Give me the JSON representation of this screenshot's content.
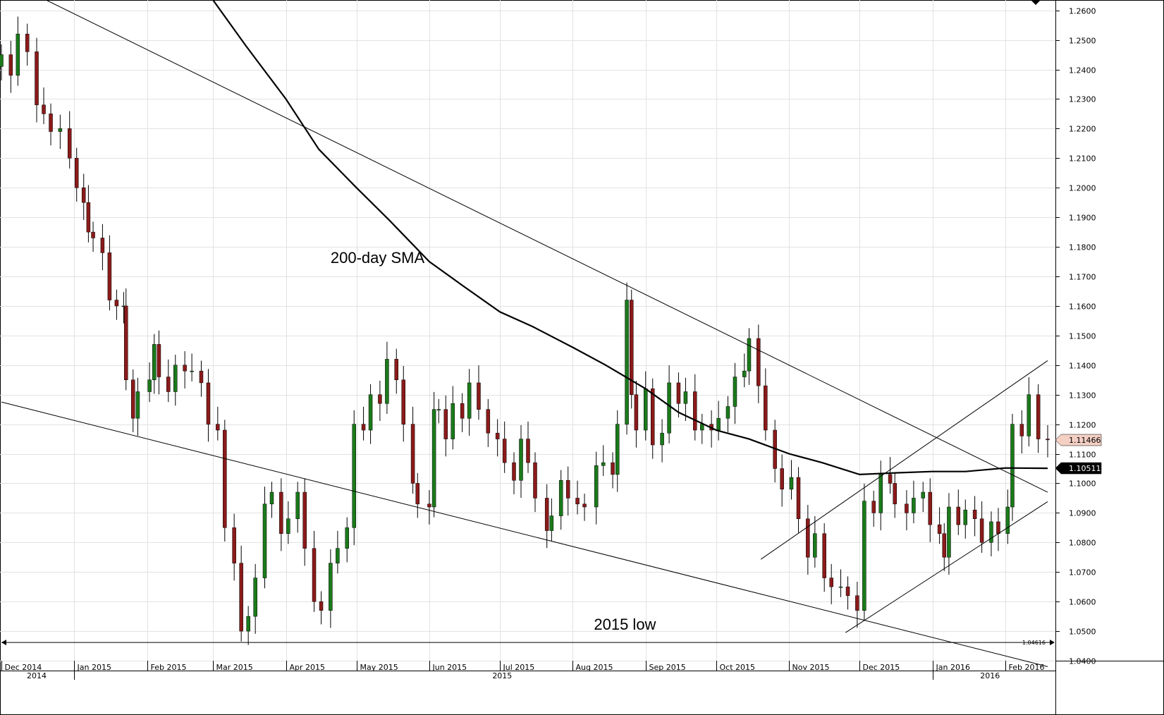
{
  "chart_data": {
    "type": "candlestick",
    "title": "",
    "y_axis": {
      "min": 1.04,
      "max": 1.2635,
      "step": 0.01,
      "tick_labels": [
        "1.0400",
        "1.0500",
        "1.0600",
        "1.0700",
        "1.0800",
        "1.0900",
        "1.1000",
        "1.1100",
        "1.1200",
        "1.1300",
        "1.1400",
        "1.1500",
        "1.1600",
        "1.1700",
        "1.1800",
        "1.1900",
        "1.2000",
        "1.2100",
        "1.2200",
        "1.2300",
        "1.2400",
        "1.2500",
        "1.2600"
      ],
      "side": "right"
    },
    "x_axis": {
      "start": "2014-12-01",
      "end": "2016-02-19",
      "month_labels": [
        "Dec 2014",
        "Jan 2015",
        "Feb 2015",
        "Mar 2015",
        "Apr 2015",
        "May 2015",
        "Jun 2015",
        "Jul 2015",
        "Aug 2015",
        "Sep 2015",
        "Oct 2015",
        "Nov 2015",
        "Dec 2015",
        "Jan 2016",
        "Feb 2016"
      ],
      "month_dates": [
        "2014-12-01",
        "2015-01-01",
        "2015-02-01",
        "2015-03-01",
        "2015-04-01",
        "2015-05-01",
        "2015-06-01",
        "2015-07-01",
        "2015-08-01",
        "2015-09-01",
        "2015-10-01",
        "2015-11-01",
        "2015-12-01",
        "2016-01-01",
        "2016-02-01"
      ],
      "year_labels": [
        "2014",
        "2015",
        "2016"
      ]
    },
    "grid": true,
    "up_color": "#1a7a1a",
    "down_color": "#8b1a1a",
    "wick_color": "#000000",
    "price_series": [
      {
        "date": "2014-12-01",
        "close": 1.245
      },
      {
        "date": "2014-12-05",
        "close": 1.238
      },
      {
        "date": "2014-12-08",
        "close": 1.252
      },
      {
        "date": "2014-12-12",
        "close": 1.246
      },
      {
        "date": "2014-12-16",
        "close": 1.228
      },
      {
        "date": "2014-12-19",
        "close": 1.225
      },
      {
        "date": "2014-12-22",
        "close": 1.219
      },
      {
        "date": "2014-12-26",
        "close": 1.22
      },
      {
        "date": "2014-12-30",
        "close": 1.21
      },
      {
        "date": "2015-01-02",
        "close": 1.2
      },
      {
        "date": "2015-01-05",
        "close": 1.195
      },
      {
        "date": "2015-01-07",
        "close": 1.185
      },
      {
        "date": "2015-01-09",
        "close": 1.183
      },
      {
        "date": "2015-01-13",
        "close": 1.178
      },
      {
        "date": "2015-01-16",
        "close": 1.162
      },
      {
        "date": "2015-01-19",
        "close": 1.16
      },
      {
        "date": "2015-01-22",
        "close": 1.16
      },
      {
        "date": "2015-01-23",
        "close": 1.135
      },
      {
        "date": "2015-01-26",
        "close": 1.122
      },
      {
        "date": "2015-01-28",
        "close": 1.131
      },
      {
        "date": "2015-02-02",
        "close": 1.135
      },
      {
        "date": "2015-02-04",
        "close": 1.147
      },
      {
        "date": "2015-02-06",
        "close": 1.136
      },
      {
        "date": "2015-02-10",
        "close": 1.131
      },
      {
        "date": "2015-02-13",
        "close": 1.14
      },
      {
        "date": "2015-02-17",
        "close": 1.138
      },
      {
        "date": "2015-02-20",
        "close": 1.138
      },
      {
        "date": "2015-02-24",
        "close": 1.134
      },
      {
        "date": "2015-02-27",
        "close": 1.12
      },
      {
        "date": "2015-03-03",
        "close": 1.118
      },
      {
        "date": "2015-03-06",
        "close": 1.085
      },
      {
        "date": "2015-03-10",
        "close": 1.073
      },
      {
        "date": "2015-03-13",
        "close": 1.05
      },
      {
        "date": "2015-03-16",
        "close": 1.055
      },
      {
        "date": "2015-03-19",
        "close": 1.068
      },
      {
        "date": "2015-03-23",
        "close": 1.093
      },
      {
        "date": "2015-03-26",
        "close": 1.097
      },
      {
        "date": "2015-03-30",
        "close": 1.083
      },
      {
        "date": "2015-04-02",
        "close": 1.088
      },
      {
        "date": "2015-04-06",
        "close": 1.097
      },
      {
        "date": "2015-04-09",
        "close": 1.078
      },
      {
        "date": "2015-04-13",
        "close": 1.06
      },
      {
        "date": "2015-04-16",
        "close": 1.057
      },
      {
        "date": "2015-04-20",
        "close": 1.073
      },
      {
        "date": "2015-04-23",
        "close": 1.078
      },
      {
        "date": "2015-04-27",
        "close": 1.085
      },
      {
        "date": "2015-04-30",
        "close": 1.12
      },
      {
        "date": "2015-05-04",
        "close": 1.118
      },
      {
        "date": "2015-05-07",
        "close": 1.13
      },
      {
        "date": "2015-05-11",
        "close": 1.127
      },
      {
        "date": "2015-05-14",
        "close": 1.142
      },
      {
        "date": "2015-05-18",
        "close": 1.135
      },
      {
        "date": "2015-05-21",
        "close": 1.12
      },
      {
        "date": "2015-05-25",
        "close": 1.1
      },
      {
        "date": "2015-05-27",
        "close": 1.093
      },
      {
        "date": "2015-06-01",
        "close": 1.092
      },
      {
        "date": "2015-06-03",
        "close": 1.125
      },
      {
        "date": "2015-06-05",
        "close": 1.125
      },
      {
        "date": "2015-06-08",
        "close": 1.115
      },
      {
        "date": "2015-06-11",
        "close": 1.127
      },
      {
        "date": "2015-06-15",
        "close": 1.122
      },
      {
        "date": "2015-06-18",
        "close": 1.134
      },
      {
        "date": "2015-06-22",
        "close": 1.125
      },
      {
        "date": "2015-06-26",
        "close": 1.117
      },
      {
        "date": "2015-06-30",
        "close": 1.115
      },
      {
        "date": "2015-07-03",
        "close": 1.107
      },
      {
        "date": "2015-07-07",
        "close": 1.101
      },
      {
        "date": "2015-07-10",
        "close": 1.115
      },
      {
        "date": "2015-07-13",
        "close": 1.107
      },
      {
        "date": "2015-07-16",
        "close": 1.095
      },
      {
        "date": "2015-07-21",
        "close": 1.084
      },
      {
        "date": "2015-07-23",
        "close": 1.089
      },
      {
        "date": "2015-07-27",
        "close": 1.101
      },
      {
        "date": "2015-07-30",
        "close": 1.095
      },
      {
        "date": "2015-08-03",
        "close": 1.093
      },
      {
        "date": "2015-08-06",
        "close": 1.092
      },
      {
        "date": "2015-08-11",
        "close": 1.106
      },
      {
        "date": "2015-08-14",
        "close": 1.107
      },
      {
        "date": "2015-08-18",
        "close": 1.103
      },
      {
        "date": "2015-08-20",
        "close": 1.12
      },
      {
        "date": "2015-08-24",
        "close": 1.162
      },
      {
        "date": "2015-08-26",
        "close": 1.13
      },
      {
        "date": "2015-08-28",
        "close": 1.118
      },
      {
        "date": "2015-09-01",
        "close": 1.132
      },
      {
        "date": "2015-09-04",
        "close": 1.113
      },
      {
        "date": "2015-09-08",
        "close": 1.117
      },
      {
        "date": "2015-09-11",
        "close": 1.134
      },
      {
        "date": "2015-09-15",
        "close": 1.127
      },
      {
        "date": "2015-09-18",
        "close": 1.131
      },
      {
        "date": "2015-09-22",
        "close": 1.118
      },
      {
        "date": "2015-09-25",
        "close": 1.12
      },
      {
        "date": "2015-09-29",
        "close": 1.118
      },
      {
        "date": "2015-10-02",
        "close": 1.122
      },
      {
        "date": "2015-10-06",
        "close": 1.126
      },
      {
        "date": "2015-10-09",
        "close": 1.136
      },
      {
        "date": "2015-10-13",
        "close": 1.138
      },
      {
        "date": "2015-10-15",
        "close": 1.149
      },
      {
        "date": "2015-10-19",
        "close": 1.133
      },
      {
        "date": "2015-10-22",
        "close": 1.118
      },
      {
        "date": "2015-10-26",
        "close": 1.105
      },
      {
        "date": "2015-10-29",
        "close": 1.098
      },
      {
        "date": "2015-11-02",
        "close": 1.102
      },
      {
        "date": "2015-11-05",
        "close": 1.088
      },
      {
        "date": "2015-11-09",
        "close": 1.075
      },
      {
        "date": "2015-11-12",
        "close": 1.083
      },
      {
        "date": "2015-11-16",
        "close": 1.068
      },
      {
        "date": "2015-11-19",
        "close": 1.065
      },
      {
        "date": "2015-11-23",
        "close": 1.065
      },
      {
        "date": "2015-11-26",
        "close": 1.062
      },
      {
        "date": "2015-11-30",
        "close": 1.057
      },
      {
        "date": "2015-12-03",
        "close": 1.094
      },
      {
        "date": "2015-12-07",
        "close": 1.09
      },
      {
        "date": "2015-12-10",
        "close": 1.103
      },
      {
        "date": "2015-12-14",
        "close": 1.1
      },
      {
        "date": "2015-12-16",
        "close": 1.093
      },
      {
        "date": "2015-12-21",
        "close": 1.09
      },
      {
        "date": "2015-12-24",
        "close": 1.095
      },
      {
        "date": "2015-12-28",
        "close": 1.097
      },
      {
        "date": "2015-12-31",
        "close": 1.086
      },
      {
        "date": "2016-01-04",
        "close": 1.083
      },
      {
        "date": "2016-01-06",
        "close": 1.075
      },
      {
        "date": "2016-01-08",
        "close": 1.092
      },
      {
        "date": "2016-01-12",
        "close": 1.086
      },
      {
        "date": "2016-01-15",
        "close": 1.091
      },
      {
        "date": "2016-01-19",
        "close": 1.088
      },
      {
        "date": "2016-01-22",
        "close": 1.08
      },
      {
        "date": "2016-01-26",
        "close": 1.087
      },
      {
        "date": "2016-01-29",
        "close": 1.083
      },
      {
        "date": "2016-02-02",
        "close": 1.092
      },
      {
        "date": "2016-02-04",
        "close": 1.12
      },
      {
        "date": "2016-02-08",
        "close": 1.116
      },
      {
        "date": "2016-02-11",
        "close": 1.13
      },
      {
        "date": "2016-02-15",
        "close": 1.115
      },
      {
        "date": "2016-02-19",
        "close": 1.1147
      }
    ],
    "sma_200": {
      "name": "200-day SMA",
      "points": [
        {
          "date": "2015-03-01",
          "value": 1.2635
        },
        {
          "date": "2015-03-15",
          "value": 1.248
        },
        {
          "date": "2015-04-01",
          "value": 1.23
        },
        {
          "date": "2015-04-15",
          "value": 1.213
        },
        {
          "date": "2015-05-01",
          "value": 1.2
        },
        {
          "date": "2015-05-15",
          "value": 1.189
        },
        {
          "date": "2015-06-01",
          "value": 1.175
        },
        {
          "date": "2015-06-15",
          "value": 1.167
        },
        {
          "date": "2015-07-01",
          "value": 1.158
        },
        {
          "date": "2015-07-15",
          "value": 1.153
        },
        {
          "date": "2015-08-01",
          "value": 1.146
        },
        {
          "date": "2015-08-15",
          "value": 1.14
        },
        {
          "date": "2015-09-01",
          "value": 1.132
        },
        {
          "date": "2015-09-15",
          "value": 1.124
        },
        {
          "date": "2015-10-01",
          "value": 1.118
        },
        {
          "date": "2015-10-15",
          "value": 1.115
        },
        {
          "date": "2015-11-01",
          "value": 1.11
        },
        {
          "date": "2015-11-15",
          "value": 1.107
        },
        {
          "date": "2015-12-01",
          "value": 1.103
        },
        {
          "date": "2015-12-15",
          "value": 1.1035
        },
        {
          "date": "2016-01-01",
          "value": 1.104
        },
        {
          "date": "2016-01-15",
          "value": 1.104
        },
        {
          "date": "2016-02-01",
          "value": 1.1052
        },
        {
          "date": "2016-02-19",
          "value": 1.1051
        }
      ]
    },
    "trendlines": [
      {
        "from": {
          "date": "2014-12-20",
          "price": 1.2635
        },
        "to": {
          "date": "2016-02-19",
          "price": 1.097
        }
      },
      {
        "from": {
          "date": "2014-12-01",
          "price": 1.1275
        },
        "to": {
          "date": "2016-02-19",
          "price": 1.038
        }
      },
      {
        "from": {
          "date": "2015-10-20",
          "price": 1.0743
        },
        "to": {
          "date": "2016-02-19",
          "price": 1.1415
        }
      },
      {
        "from": {
          "date": "2015-11-25",
          "price": 1.0495
        },
        "to": {
          "date": "2016-02-19",
          "price": 1.0938
        }
      }
    ],
    "horizontal_line": {
      "label": "1.04616",
      "price": 1.04616
    },
    "annotations": [
      {
        "text": "200-day SMA",
        "date": "2015-04-20",
        "price": 1.1745
      },
      {
        "text": "2015 low",
        "date": "2015-08-10",
        "price": 1.0505
      }
    ],
    "price_labels": [
      {
        "text": "1.11466",
        "price": 1.11466,
        "background": "#f4cfc4",
        "color": "#000000"
      },
      {
        "text": "1.10511",
        "price": 1.10511,
        "background": "#000000",
        "color": "#ffffff"
      }
    ]
  }
}
